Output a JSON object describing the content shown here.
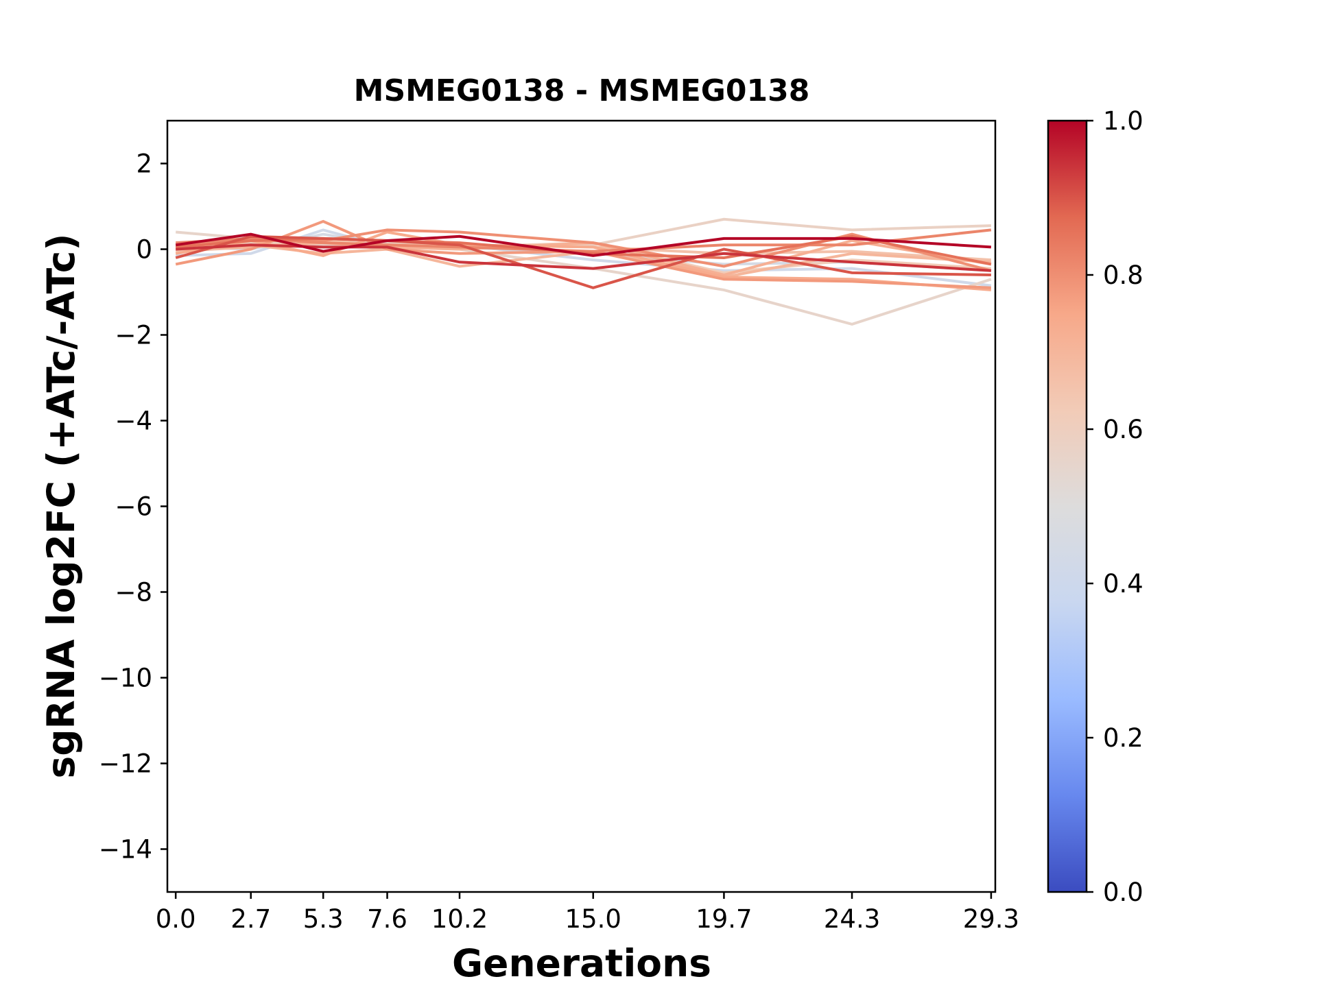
{
  "chart_data": {
    "type": "line",
    "title": "MSMEG0138 - MSMEG0138",
    "xlabel": "Generations",
    "ylabel": "sgRNA log2FC (+ATc/-ATc)",
    "x": [
      0.0,
      2.7,
      5.3,
      7.6,
      10.2,
      15.0,
      19.7,
      24.3,
      29.3
    ],
    "x_tick_labels": [
      "0.0",
      "2.7",
      "5.3",
      "7.6",
      "10.2",
      "15.0",
      "19.7",
      "24.3",
      "29.3"
    ],
    "xlim": [
      -0.3,
      29.45
    ],
    "ylim": [
      -15,
      3
    ],
    "y_ticks": [
      2,
      0,
      -2,
      -4,
      -6,
      -8,
      -10,
      -12,
      -14
    ],
    "y_tick_labels": [
      "2",
      "0",
      "−2",
      "−4",
      "−6",
      "−8",
      "−10",
      "−12",
      "−14"
    ],
    "grid": false,
    "colorbar": {
      "colormap": "coolwarm",
      "range": [
        0.0,
        1.0
      ],
      "tick_values": [
        0.0,
        0.2,
        0.4,
        0.6,
        0.8,
        1.0
      ],
      "tick_labels": [
        "0.0",
        "0.2",
        "0.4",
        "0.6",
        "0.8",
        "1.0"
      ],
      "stops": [
        "#3b4cc0",
        "#6788ee",
        "#9abbff",
        "#c9d7f0",
        "#dddcdc",
        "#f2cbb7",
        "#f7a889",
        "#e26952",
        "#b40426"
      ]
    },
    "series": [
      {
        "color_value": 0.42,
        "values": [
          -0.15,
          -0.1,
          0.45,
          0.05,
          0.1,
          -0.25,
          -0.5,
          -0.45,
          -0.85
        ]
      },
      {
        "color_value": 0.45,
        "values": [
          0.05,
          0.0,
          0.35,
          0.1,
          0.05,
          -0.1,
          -0.35,
          -0.3,
          -0.5
        ]
      },
      {
        "color_value": 0.56,
        "values": [
          0.4,
          0.25,
          0.1,
          0.05,
          0.0,
          -0.45,
          -0.95,
          -1.75,
          -0.7
        ]
      },
      {
        "color_value": 0.58,
        "values": [
          0.1,
          0.15,
          0.2,
          0.15,
          0.05,
          0.1,
          0.7,
          0.45,
          0.55
        ]
      },
      {
        "color_value": 0.62,
        "values": [
          0.0,
          0.1,
          0.15,
          0.0,
          0.05,
          0.15,
          -0.55,
          -0.25,
          -0.45
        ]
      },
      {
        "color_value": 0.66,
        "values": [
          -0.05,
          0.05,
          0.2,
          0.1,
          0.1,
          0.05,
          -0.1,
          -0.05,
          -0.25
        ]
      },
      {
        "color_value": 0.7,
        "values": [
          0.05,
          0.1,
          -0.1,
          0.0,
          -0.4,
          -0.05,
          -0.65,
          -0.1,
          -0.3
        ]
      },
      {
        "color_value": 0.72,
        "values": [
          0.0,
          0.05,
          0.15,
          0.05,
          0.0,
          0.15,
          -0.6,
          0.2,
          -0.35
        ]
      },
      {
        "color_value": 0.74,
        "values": [
          -0.1,
          0.2,
          -0.15,
          0.4,
          0.1,
          0.05,
          -0.65,
          -0.7,
          -0.95
        ]
      },
      {
        "color_value": 0.78,
        "values": [
          -0.35,
          0.0,
          0.65,
          0.0,
          -0.1,
          -0.05,
          -0.7,
          -0.75,
          -0.9
        ]
      },
      {
        "color_value": 0.8,
        "values": [
          0.1,
          0.2,
          0.2,
          0.45,
          0.4,
          0.15,
          -0.4,
          0.35,
          -0.5
        ]
      },
      {
        "color_value": 0.82,
        "values": [
          0.15,
          0.25,
          0.15,
          0.1,
          0.05,
          -0.05,
          0.1,
          0.1,
          0.45
        ]
      },
      {
        "color_value": 0.86,
        "values": [
          0.05,
          0.2,
          0.25,
          0.2,
          0.15,
          -0.1,
          -0.2,
          0.3,
          -0.35
        ]
      },
      {
        "color_value": 0.9,
        "values": [
          -0.2,
          0.3,
          0.25,
          0.2,
          0.1,
          -0.9,
          0.0,
          -0.55,
          -0.6
        ]
      },
      {
        "color_value": 0.94,
        "values": [
          0.0,
          0.1,
          0.05,
          0.05,
          -0.3,
          -0.45,
          -0.1,
          -0.3,
          -0.5
        ]
      },
      {
        "color_value": 1.0,
        "values": [
          0.1,
          0.35,
          -0.05,
          0.2,
          0.3,
          -0.15,
          0.25,
          0.25,
          0.05
        ]
      }
    ]
  }
}
